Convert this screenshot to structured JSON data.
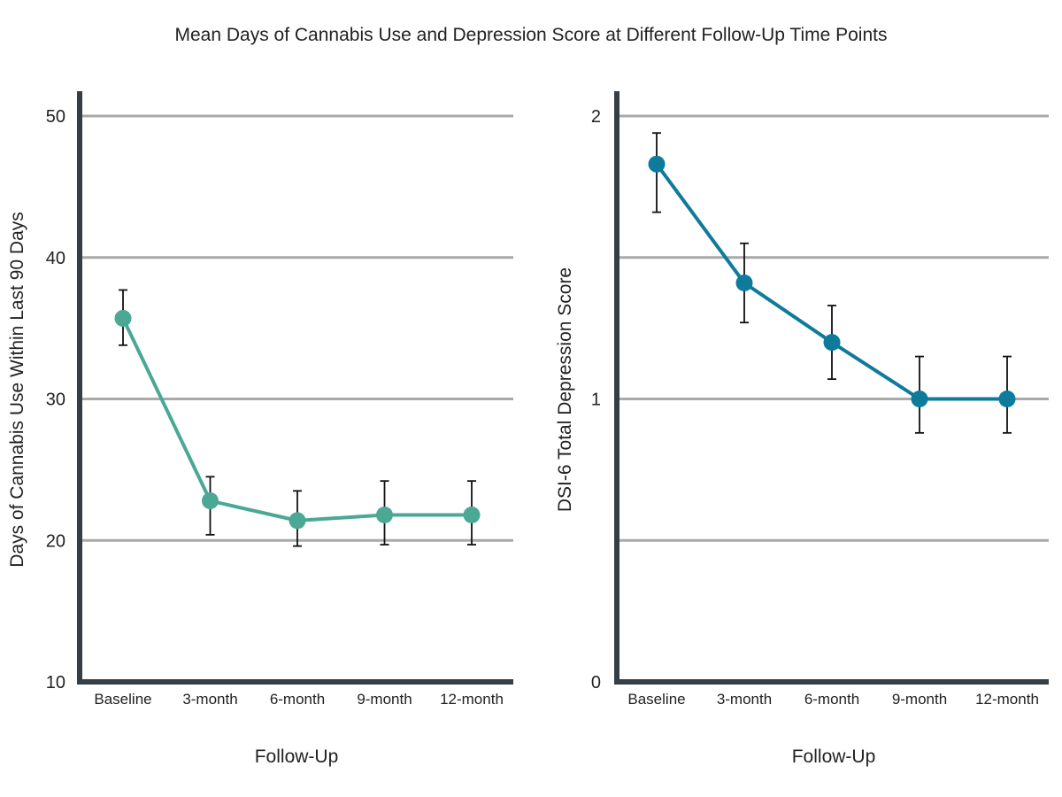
{
  "title": "Mean Days of Cannabis Use and Depression Score at Different Follow-Up Time Points",
  "chart_data": [
    {
      "type": "line",
      "categories": [
        "Baseline",
        "3-month",
        "6-month",
        "9-month",
        "12-month"
      ],
      "series": [
        {
          "values": [
            35.7,
            22.8,
            21.4,
            21.8,
            21.8
          ],
          "error_low": [
            33.8,
            20.4,
            19.6,
            19.7,
            19.7
          ],
          "error_high": [
            37.7,
            24.5,
            23.5,
            24.2,
            24.2
          ],
          "color": "#4aa894"
        }
      ],
      "xlabel": "Follow-Up",
      "ylabel": "Days of Cannabis Use Within Last 90 Days",
      "ylim": [
        10,
        50
      ],
      "yticks": [
        "10",
        "20",
        "30",
        "40",
        "50"
      ],
      "grid": true
    },
    {
      "type": "line",
      "categories": [
        "Baseline",
        "3-month",
        "6-month",
        "9-month",
        "12-month"
      ],
      "series": [
        {
          "values": [
            1.83,
            1.41,
            1.2,
            1.0,
            1.0
          ],
          "error_low": [
            1.66,
            1.27,
            1.07,
            0.88,
            0.88
          ],
          "error_high": [
            1.94,
            1.55,
            1.33,
            1.15,
            1.15
          ],
          "color": "#0e7a9c"
        }
      ],
      "xlabel": "Follow-Up",
      "ylabel": "DSI-6 Total Depression Score",
      "ylim": [
        0,
        2
      ],
      "yticks": [
        "0",
        "1",
        "2"
      ],
      "grid": true
    }
  ]
}
